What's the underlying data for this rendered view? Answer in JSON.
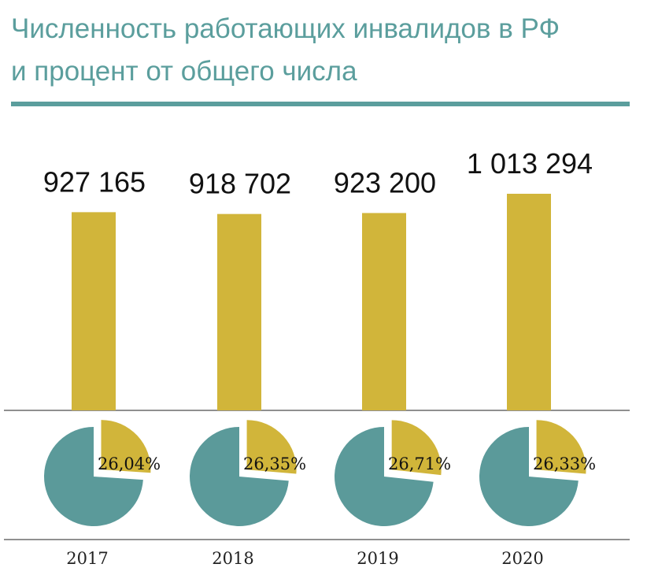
{
  "header": {
    "title_line1": "Численность работающих инвалидов в РФ",
    "title_line2": "и процент от общего числа"
  },
  "colors": {
    "bar": "#d1b53a",
    "pie_rest": "#5b9a9a",
    "pie_share": "#d1b53a",
    "title": "#5b9e9d"
  },
  "chart_data": {
    "type": "bar",
    "categories": [
      "2017",
      "2018",
      "2019",
      "2020"
    ],
    "values": [
      927165,
      918702,
      923200,
      1013294
    ],
    "value_labels": [
      "927 165",
      "918 702",
      "923 200",
      "1 013 294"
    ],
    "percent_values": [
      26.04,
      26.35,
      26.71,
      26.33
    ],
    "percent_labels": [
      "26,04%",
      "26,35%",
      "26,71%",
      "26,33%"
    ],
    "title": "Численность работающих инвалидов в РФ и процент от общего числа",
    "xlabel": "",
    "ylabel": "",
    "ylim": [
      0,
      1100000
    ],
    "grid": false,
    "legend": "none"
  }
}
